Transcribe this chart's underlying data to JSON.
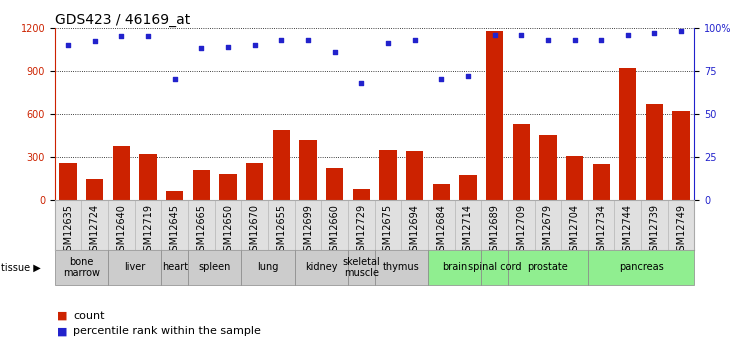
{
  "title": "GDS423 / 46169_at",
  "samples": [
    "GSM12635",
    "GSM12724",
    "GSM12640",
    "GSM12719",
    "GSM12645",
    "GSM12665",
    "GSM12650",
    "GSM12670",
    "GSM12655",
    "GSM12699",
    "GSM12660",
    "GSM12729",
    "GSM12675",
    "GSM12694",
    "GSM12684",
    "GSM12714",
    "GSM12689",
    "GSM12709",
    "GSM12679",
    "GSM12704",
    "GSM12734",
    "GSM12744",
    "GSM12739",
    "GSM12749"
  ],
  "counts": [
    255,
    145,
    375,
    320,
    60,
    210,
    185,
    255,
    490,
    415,
    220,
    75,
    350,
    340,
    110,
    175,
    1175,
    530,
    450,
    310,
    250,
    920,
    670,
    620
  ],
  "percentiles": [
    90,
    92,
    95,
    95,
    70,
    88,
    89,
    90,
    93,
    93,
    86,
    68,
    91,
    93,
    70,
    72,
    96,
    96,
    93,
    93,
    93,
    96,
    97,
    98
  ],
  "tissues": [
    {
      "name": "bone\nmarrow",
      "start": 0,
      "end": 2,
      "color": "#cccccc"
    },
    {
      "name": "liver",
      "start": 2,
      "end": 4,
      "color": "#cccccc"
    },
    {
      "name": "heart",
      "start": 4,
      "end": 5,
      "color": "#cccccc"
    },
    {
      "name": "spleen",
      "start": 5,
      "end": 7,
      "color": "#cccccc"
    },
    {
      "name": "lung",
      "start": 7,
      "end": 9,
      "color": "#cccccc"
    },
    {
      "name": "kidney",
      "start": 9,
      "end": 11,
      "color": "#cccccc"
    },
    {
      "name": "skeletal\nmuscle",
      "start": 11,
      "end": 12,
      "color": "#cccccc"
    },
    {
      "name": "thymus",
      "start": 12,
      "end": 14,
      "color": "#cccccc"
    },
    {
      "name": "brain",
      "start": 14,
      "end": 16,
      "color": "#90ee90"
    },
    {
      "name": "spinal cord",
      "start": 16,
      "end": 17,
      "color": "#90ee90"
    },
    {
      "name": "prostate",
      "start": 17,
      "end": 20,
      "color": "#90ee90"
    },
    {
      "name": "pancreas",
      "start": 20,
      "end": 24,
      "color": "#90ee90"
    }
  ],
  "ylim_left": [
    0,
    1200
  ],
  "ylim_right": [
    0,
    100
  ],
  "yticks_left": [
    0,
    300,
    600,
    900,
    1200
  ],
  "yticks_right": [
    0,
    25,
    50,
    75,
    100
  ],
  "bar_color": "#cc2200",
  "dot_color": "#2222cc",
  "title_fontsize": 10,
  "tick_fontsize": 7,
  "tissue_fontsize": 7,
  "legend_fontsize": 8
}
